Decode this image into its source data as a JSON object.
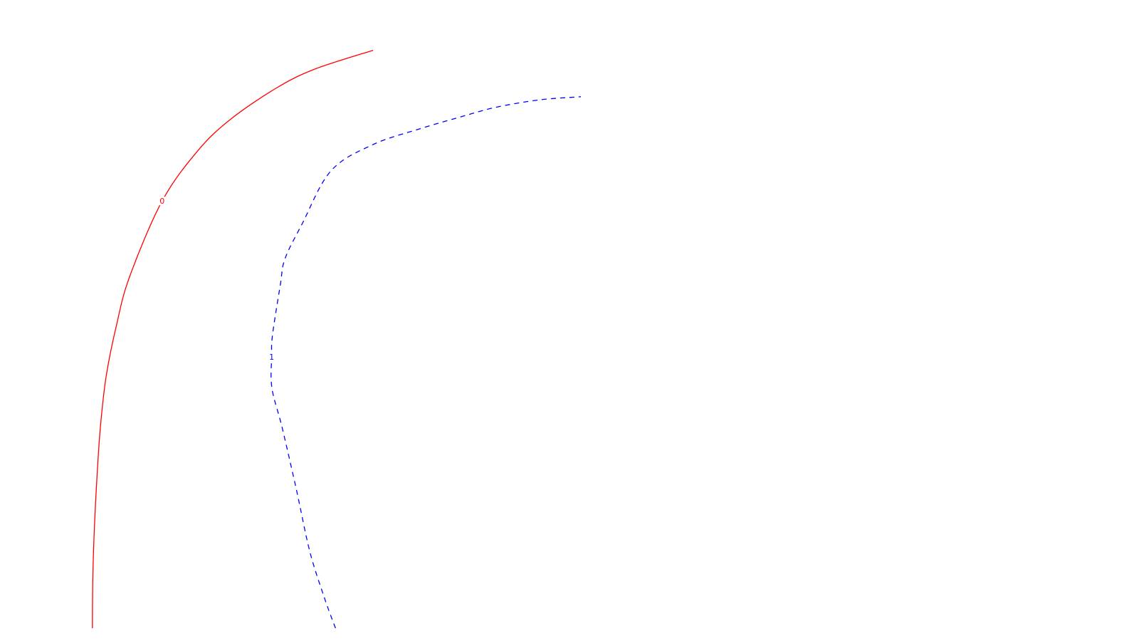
{
  "chart_data": {
    "type": "line",
    "title": "",
    "xlabel": "",
    "ylabel": "",
    "grid": false,
    "legend": "none",
    "series": [
      {
        "label": "0",
        "color": "#ff0000",
        "line_style": "solid",
        "points": [
          [
            0.0832,
            0.0
          ],
          [
            0.0836,
            0.08
          ],
          [
            0.085,
            0.16
          ],
          [
            0.0873,
            0.24
          ],
          [
            0.0904,
            0.32
          ],
          [
            0.0955,
            0.4
          ],
          [
            0.1046,
            0.48
          ],
          [
            0.1168,
            0.56
          ],
          [
            0.146,
            0.68
          ],
          [
            0.1781,
            0.76
          ],
          [
            0.2075,
            0.81
          ],
          [
            0.249,
            0.86
          ],
          [
            0.2835,
            0.89
          ],
          [
            0.336,
            0.92
          ]
        ],
        "label_point": [
          0.146,
          0.68
        ]
      },
      {
        "label": "1",
        "color": "#0000ff",
        "line_style": "dashed",
        "points": [
          [
            0.3021,
            0.0
          ],
          [
            0.2922,
            0.048
          ],
          [
            0.279,
            0.122
          ],
          [
            0.2666,
            0.223
          ],
          [
            0.2541,
            0.319
          ],
          [
            0.2449,
            0.382
          ],
          [
            0.2446,
            0.432
          ],
          [
            0.2454,
            0.467
          ],
          [
            0.2524,
            0.546
          ],
          [
            0.2566,
            0.588
          ],
          [
            0.2722,
            0.644
          ],
          [
            0.298,
            0.728
          ],
          [
            0.336,
            0.77
          ],
          [
            0.38,
            0.796
          ],
          [
            0.411,
            0.812
          ],
          [
            0.446,
            0.829
          ],
          [
            0.486,
            0.841
          ],
          [
            0.523,
            0.846
          ]
        ],
        "label_point": [
          0.2446,
          0.432
        ]
      }
    ]
  }
}
